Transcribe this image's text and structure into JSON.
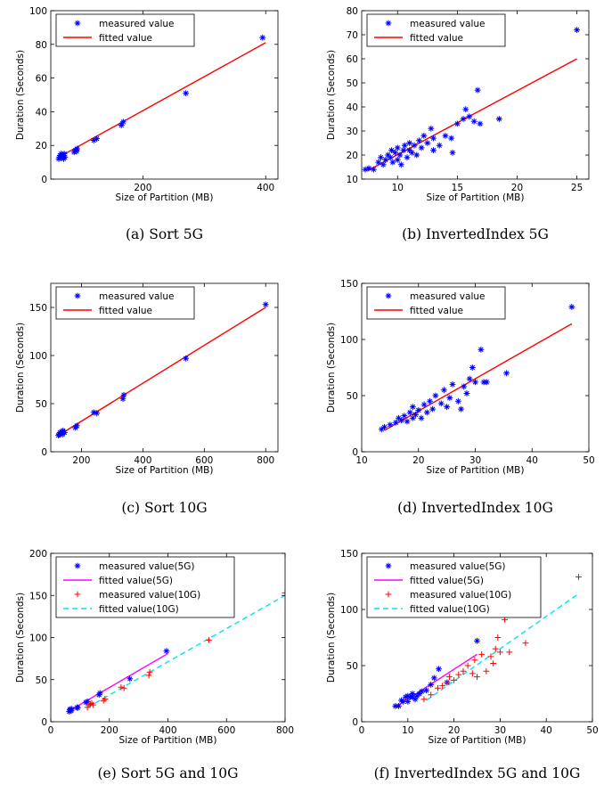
{
  "chart_data": [
    {
      "type": "scatter",
      "caption": "(a) Sort 5G",
      "xlabel": "Size of Partition (MB)",
      "ylabel": "Duration (Seconds)",
      "xlim": [
        50,
        420
      ],
      "ylim": [
        0,
        100
      ],
      "xticks": [
        200,
        400
      ],
      "yticks": [
        0,
        20,
        40,
        60,
        80,
        100
      ],
      "legend": {
        "location": "top-left",
        "entries": [
          "measured value",
          "fitted value"
        ]
      },
      "series": [
        {
          "name": "measured value",
          "kind": "points",
          "marker": "asterisk",
          "color": "#0000ff",
          "points": [
            [
              63,
              12
            ],
            [
              64,
              13
            ],
            [
              65,
              14
            ],
            [
              66,
              12.5
            ],
            [
              67,
              15
            ],
            [
              68,
              13
            ],
            [
              70,
              14
            ],
            [
              71,
              12
            ],
            [
              72,
              15
            ],
            [
              73,
              13
            ],
            [
              88,
              16
            ],
            [
              90,
              17
            ],
            [
              92,
              16.5
            ],
            [
              93,
              18
            ],
            [
              120,
              23
            ],
            [
              125,
              24
            ],
            [
              165,
              32
            ],
            [
              168,
              34
            ],
            [
              270,
              51
            ],
            [
              395,
              84
            ]
          ]
        },
        {
          "name": "fitted value",
          "kind": "line",
          "color": "#ff0000",
          "dash": false,
          "points": [
            [
              63,
              13
            ],
            [
              400,
              81
            ]
          ]
        }
      ]
    },
    {
      "type": "scatter",
      "caption": "(b) InvertedIndex 5G",
      "xlabel": "Size of Partition (MB)",
      "ylabel": "Duration (Seconds)",
      "xlim": [
        7,
        26
      ],
      "ylim": [
        10,
        80
      ],
      "xticks": [
        10,
        15,
        20,
        25
      ],
      "yticks": [
        10,
        20,
        30,
        40,
        50,
        60,
        70,
        80
      ],
      "legend": {
        "location": "top-left",
        "entries": [
          "measured value",
          "fitted value"
        ]
      },
      "series": [
        {
          "name": "measured value",
          "kind": "points",
          "marker": "asterisk",
          "color": "#0000ff",
          "points": [
            [
              7.3,
              14
            ],
            [
              7.6,
              14.5
            ],
            [
              8,
              14
            ],
            [
              8.4,
              17
            ],
            [
              8.6,
              19
            ],
            [
              8.8,
              16
            ],
            [
              9,
              18
            ],
            [
              9.2,
              20
            ],
            [
              9.4,
              19
            ],
            [
              9.5,
              22
            ],
            [
              9.6,
              17
            ],
            [
              9.8,
              21
            ],
            [
              10,
              18
            ],
            [
              10,
              23
            ],
            [
              10.2,
              20
            ],
            [
              10.3,
              16
            ],
            [
              10.5,
              22
            ],
            [
              10.6,
              24
            ],
            [
              10.8,
              19
            ],
            [
              11,
              22
            ],
            [
              11,
              25
            ],
            [
              11.2,
              21
            ],
            [
              11.4,
              24
            ],
            [
              11.6,
              20
            ],
            [
              11.8,
              26
            ],
            [
              12,
              23
            ],
            [
              12.2,
              28
            ],
            [
              12.5,
              25
            ],
            [
              12.8,
              31
            ],
            [
              13,
              22
            ],
            [
              13,
              27
            ],
            [
              13.5,
              24
            ],
            [
              14,
              28
            ],
            [
              14.5,
              27
            ],
            [
              14.6,
              21
            ],
            [
              15,
              33
            ],
            [
              15.5,
              35
            ],
            [
              15.7,
              39
            ],
            [
              16,
              36
            ],
            [
              16.4,
              34
            ],
            [
              16.7,
              47
            ],
            [
              16.9,
              33
            ],
            [
              18.5,
              35
            ],
            [
              25,
              72
            ]
          ]
        },
        {
          "name": "fitted value",
          "kind": "line",
          "color": "#ff0000",
          "dash": false,
          "points": [
            [
              7.5,
              13.5
            ],
            [
              25,
              60
            ]
          ]
        }
      ]
    },
    {
      "type": "scatter",
      "caption": "(c) Sort 10G",
      "xlabel": "Size of Partition (MB)",
      "ylabel": "Duration (Seconds)",
      "xlim": [
        100,
        840
      ],
      "ylim": [
        0,
        175
      ],
      "xticks": [
        200,
        400,
        600,
        800
      ],
      "yticks": [
        0,
        50,
        100,
        150
      ],
      "legend": {
        "location": "top-left",
        "entries": [
          "measured value",
          "fitted value"
        ]
      },
      "series": [
        {
          "name": "measured value",
          "kind": "points",
          "marker": "asterisk",
          "color": "#0000ff",
          "points": [
            [
              125,
              17
            ],
            [
              128,
              18
            ],
            [
              130,
              20
            ],
            [
              132,
              19
            ],
            [
              135,
              21
            ],
            [
              138,
              18
            ],
            [
              140,
              22
            ],
            [
              145,
              20
            ],
            [
              180,
              25
            ],
            [
              185,
              27
            ],
            [
              240,
              41
            ],
            [
              250,
              40
            ],
            [
              335,
              55
            ],
            [
              338,
              59
            ],
            [
              540,
              97
            ],
            [
              800,
              153
            ]
          ]
        },
        {
          "name": "fitted value",
          "kind": "line",
          "color": "#ff0000",
          "dash": false,
          "points": [
            [
              125,
              17
            ],
            [
              800,
              150
            ]
          ]
        }
      ]
    },
    {
      "type": "scatter",
      "caption": "(d) InvertedIndex 10G",
      "xlabel": "Size of Partition (MB)",
      "ylabel": "Duration (Seconds)",
      "xlim": [
        10,
        50
      ],
      "ylim": [
        0,
        150
      ],
      "xticks": [
        10,
        20,
        30,
        40,
        50
      ],
      "yticks": [
        0,
        50,
        100,
        150
      ],
      "legend": {
        "location": "top-left",
        "entries": [
          "measured value",
          "fitted value"
        ]
      },
      "series": [
        {
          "name": "measured value",
          "kind": "points",
          "marker": "asterisk",
          "color": "#0000ff",
          "points": [
            [
              13.5,
              20
            ],
            [
              14,
              22
            ],
            [
              15,
              24
            ],
            [
              16,
              26
            ],
            [
              16.5,
              30
            ],
            [
              17,
              28
            ],
            [
              17.5,
              32
            ],
            [
              18,
              27
            ],
            [
              18.5,
              35
            ],
            [
              19,
              30
            ],
            [
              19,
              40
            ],
            [
              19.5,
              33
            ],
            [
              20,
              37
            ],
            [
              20.5,
              30
            ],
            [
              21,
              42
            ],
            [
              21.5,
              35
            ],
            [
              22,
              45
            ],
            [
              22.5,
              38
            ],
            [
              23,
              50
            ],
            [
              24,
              43
            ],
            [
              24.5,
              55
            ],
            [
              25,
              40
            ],
            [
              25.5,
              48
            ],
            [
              26,
              60
            ],
            [
              27,
              45
            ],
            [
              27.5,
              38
            ],
            [
              28,
              58
            ],
            [
              28.5,
              52
            ],
            [
              29,
              65
            ],
            [
              29.5,
              75
            ],
            [
              30,
              62
            ],
            [
              31,
              91
            ],
            [
              31.5,
              62
            ],
            [
              32,
              62
            ],
            [
              35.5,
              70
            ],
            [
              47,
              129
            ]
          ]
        },
        {
          "name": "fitted value",
          "kind": "line",
          "color": "#ff0000",
          "dash": false,
          "points": [
            [
              14,
              19
            ],
            [
              47,
              114
            ]
          ]
        }
      ]
    },
    {
      "type": "scatter",
      "caption": "(e) Sort 5G and 10G",
      "xlabel": "Size of Partition (MB)",
      "ylabel": "Duration (Seconds)",
      "xlim": [
        0,
        800
      ],
      "ylim": [
        0,
        200
      ],
      "xticks": [
        0,
        200,
        400,
        600,
        800
      ],
      "yticks": [
        0,
        50,
        100,
        150,
        200
      ],
      "legend": {
        "location": "top-left",
        "entries": [
          "measured value(5G)",
          "fitted value(5G)",
          "measured value(10G)",
          "fitted value(10G)"
        ]
      },
      "series": [
        {
          "name": "measured value(5G)",
          "kind": "points",
          "marker": "asterisk",
          "color": "#0000ff",
          "points": [
            [
              63,
              12
            ],
            [
              65,
              14
            ],
            [
              67,
              15
            ],
            [
              70,
              13
            ],
            [
              72,
              15
            ],
            [
              90,
              17
            ],
            [
              92,
              16.5
            ],
            [
              120,
              23
            ],
            [
              125,
              24
            ],
            [
              165,
              32
            ],
            [
              168,
              34
            ],
            [
              270,
              51
            ],
            [
              395,
              84
            ]
          ]
        },
        {
          "name": "fitted value(5G)",
          "kind": "line",
          "color": "#ff00ff",
          "dash": false,
          "points": [
            [
              63,
              13
            ],
            [
              400,
              81
            ]
          ]
        },
        {
          "name": "measured value(10G)",
          "kind": "points",
          "marker": "plus",
          "color": "#ff0000",
          "points": [
            [
              125,
              17
            ],
            [
              130,
              20
            ],
            [
              135,
              21
            ],
            [
              140,
              22
            ],
            [
              145,
              20
            ],
            [
              180,
              25
            ],
            [
              185,
              27
            ],
            [
              240,
              41
            ],
            [
              250,
              40
            ],
            [
              335,
              55
            ],
            [
              338,
              59
            ],
            [
              540,
              97
            ],
            [
              800,
              153
            ]
          ]
        },
        {
          "name": "fitted value(10G)",
          "kind": "line",
          "color": "#00e5ee",
          "dash": true,
          "points": [
            [
              125,
              17
            ],
            [
              800,
              150
            ]
          ]
        }
      ]
    },
    {
      "type": "scatter",
      "caption": "(f) InvertedIndex 5G and 10G",
      "xlabel": "Size of Partition (MB)",
      "ylabel": "Duration (Seconds)",
      "xlim": [
        0,
        50
      ],
      "ylim": [
        0,
        150
      ],
      "xticks": [
        0,
        10,
        20,
        30,
        40,
        50
      ],
      "yticks": [
        0,
        50,
        100,
        150
      ],
      "legend": {
        "location": "top-left",
        "entries": [
          "measured value(5G)",
          "fitted value(5G)",
          "measured value(10G)",
          "fitted value(10G)"
        ]
      },
      "series": [
        {
          "name": "measured value(5G)",
          "kind": "points",
          "marker": "asterisk",
          "color": "#0000ff",
          "points": [
            [
              7.3,
              14
            ],
            [
              8,
              14
            ],
            [
              8.6,
              19
            ],
            [
              9,
              18
            ],
            [
              9.5,
              22
            ],
            [
              10,
              18
            ],
            [
              10,
              23
            ],
            [
              10.5,
              22
            ],
            [
              11,
              22
            ],
            [
              11,
              25
            ],
            [
              11.6,
              20
            ],
            [
              12,
              23
            ],
            [
              12.5,
              25
            ],
            [
              13,
              27
            ],
            [
              14,
              28
            ],
            [
              15,
              33
            ],
            [
              15.7,
              39
            ],
            [
              16.7,
              47
            ],
            [
              18.5,
              35
            ],
            [
              25,
              72
            ]
          ]
        },
        {
          "name": "fitted value(5G)",
          "kind": "line",
          "color": "#ff00ff",
          "dash": false,
          "points": [
            [
              7.5,
              13.5
            ],
            [
              25,
              60
            ]
          ]
        },
        {
          "name": "measured value(10G)",
          "kind": "points",
          "marker": "plus",
          "color": "#ff0000",
          "points": [
            [
              13.5,
              20
            ],
            [
              15,
              24
            ],
            [
              16.5,
              30
            ],
            [
              17.5,
              32
            ],
            [
              18.5,
              35
            ],
            [
              19,
              40
            ],
            [
              20,
              37
            ],
            [
              21,
              42
            ],
            [
              22,
              45
            ],
            [
              23,
              50
            ],
            [
              24,
              43
            ],
            [
              24.5,
              55
            ],
            [
              25,
              40
            ],
            [
              26,
              60
            ],
            [
              27,
              45
            ],
            [
              28,
              58
            ],
            [
              28.5,
              52
            ],
            [
              29,
              65
            ],
            [
              29.5,
              75
            ],
            [
              30,
              62
            ],
            [
              31,
              91
            ],
            [
              32,
              62
            ],
            [
              35.5,
              70
            ],
            [
              47,
              129
            ]
          ]
        },
        {
          "name": "fitted value(10G)",
          "kind": "line",
          "color": "#00e5ee",
          "dash": true,
          "points": [
            [
              14,
              19
            ],
            [
              47,
              114
            ]
          ]
        }
      ]
    }
  ]
}
